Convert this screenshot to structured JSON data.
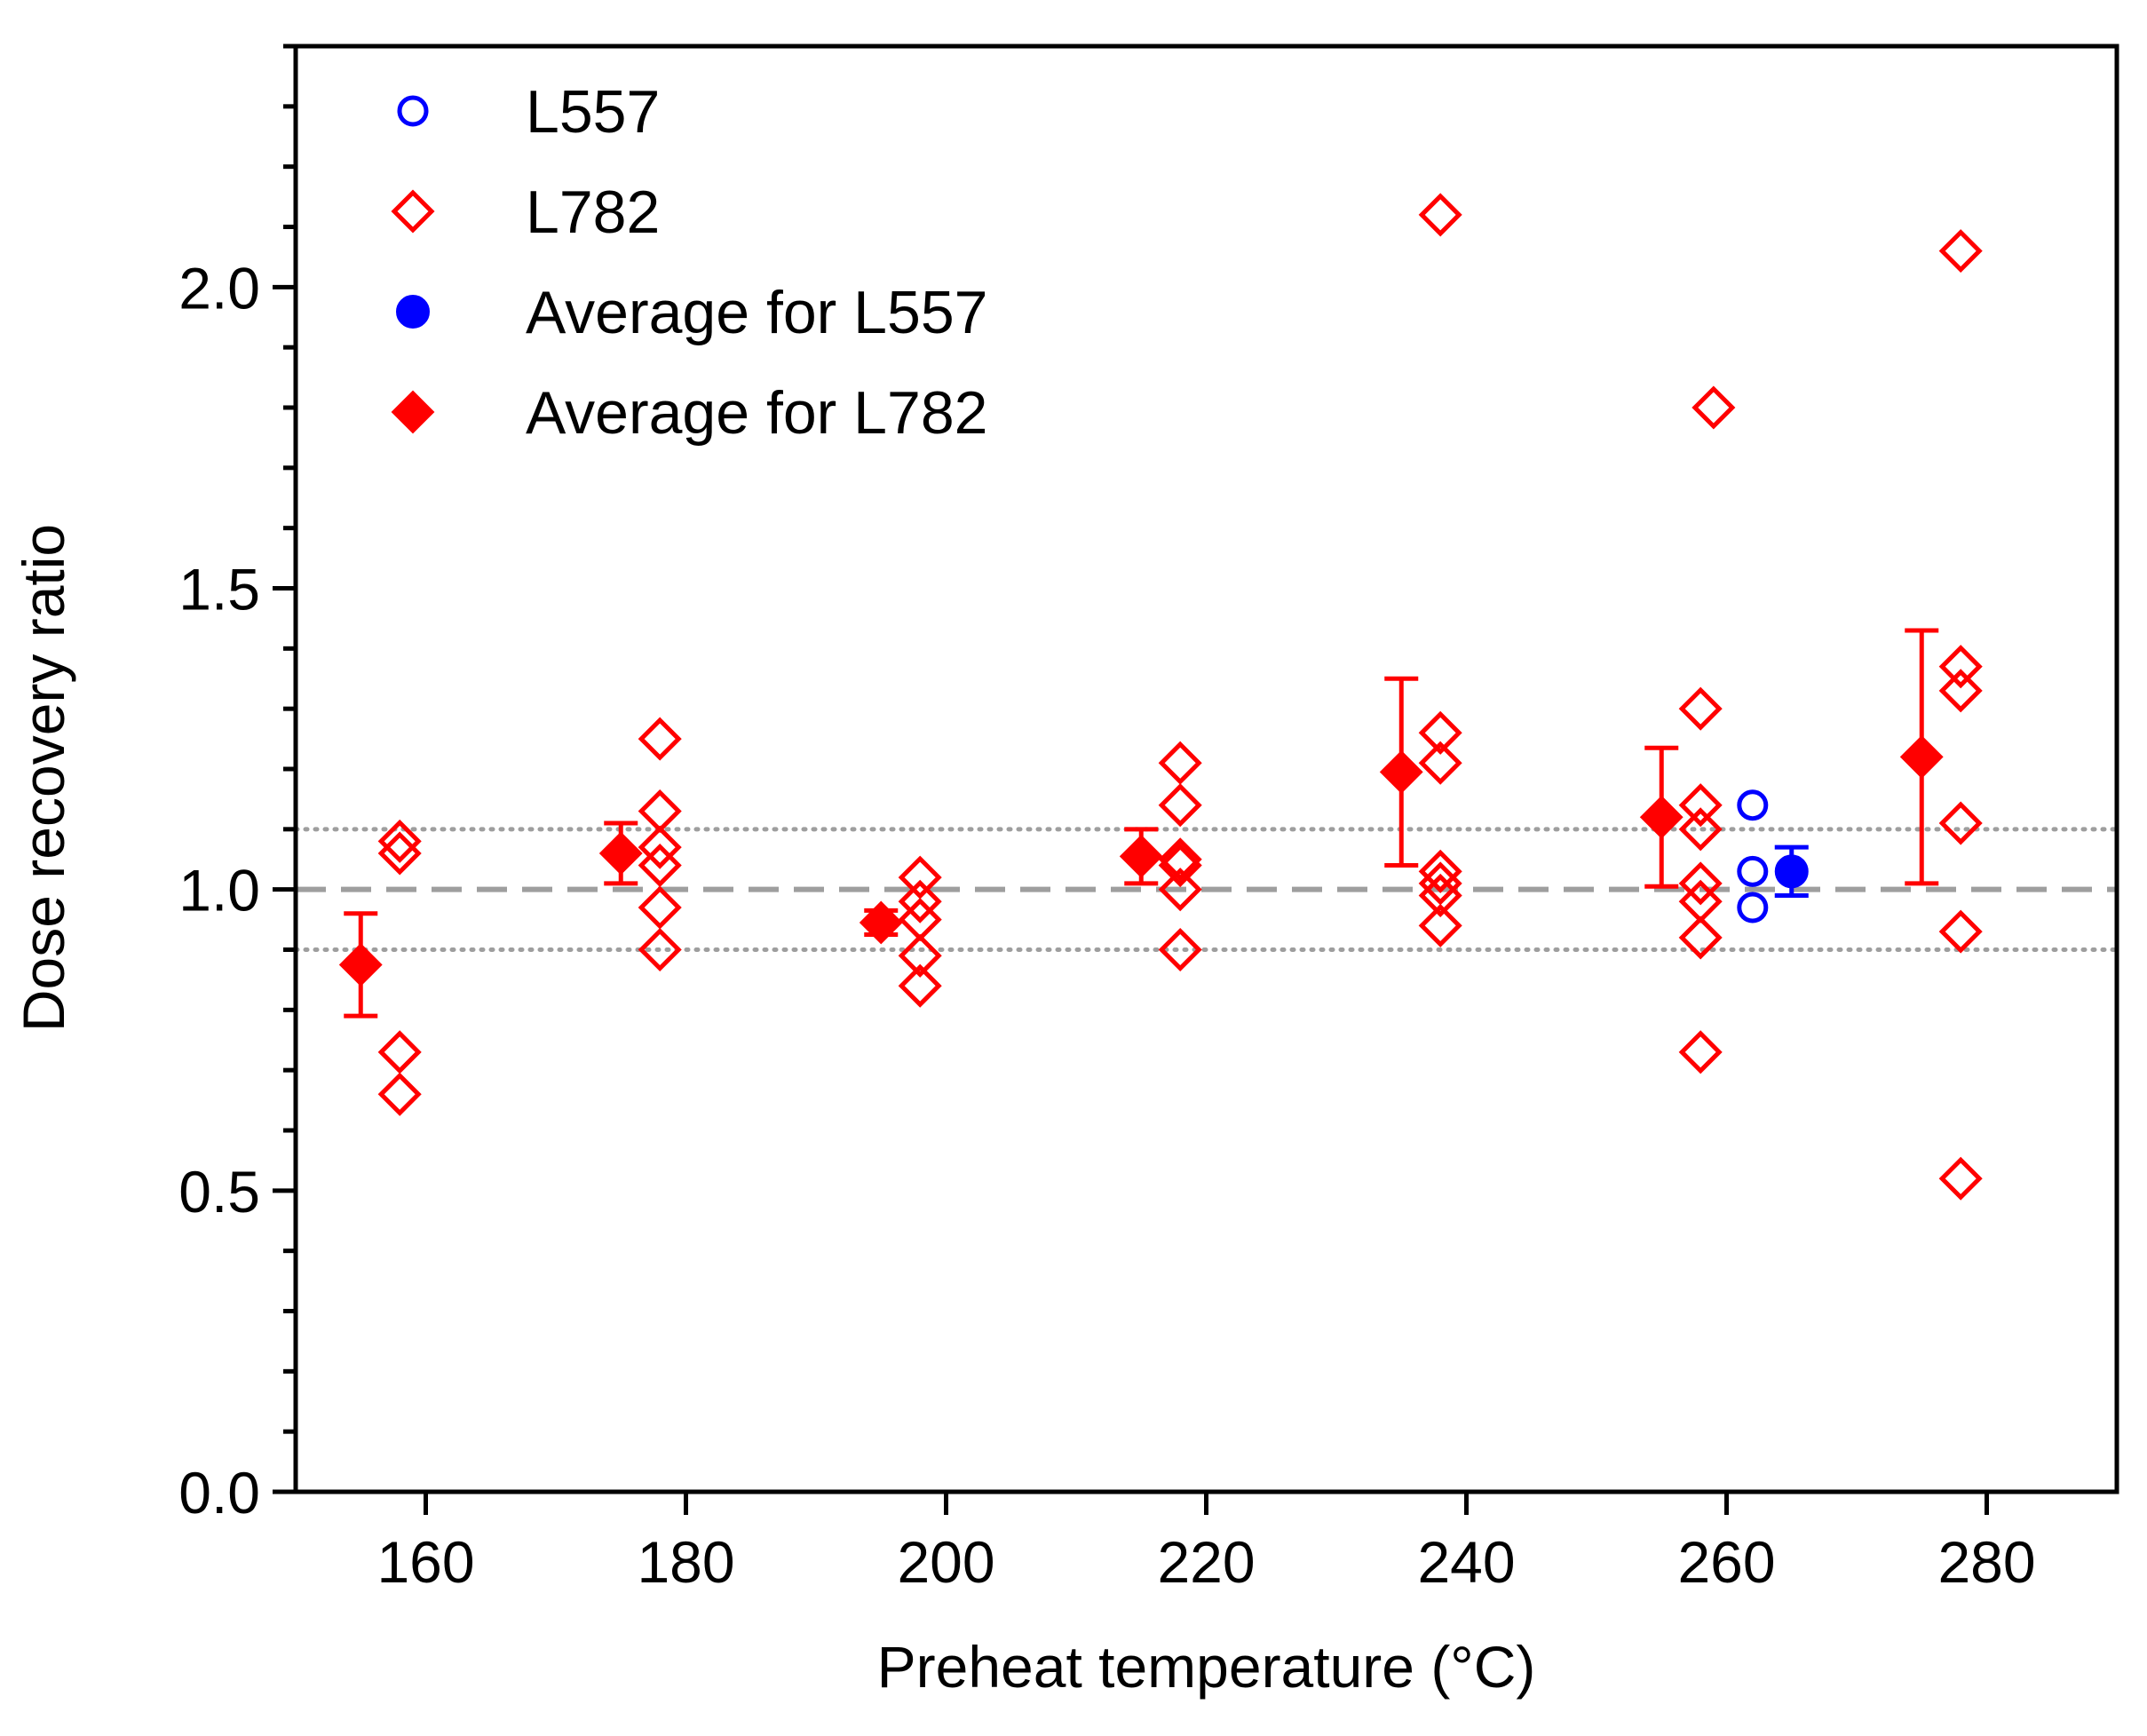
{
  "chart_data": {
    "type": "scatter",
    "title": "",
    "xlabel": "Preheat temperature (°C)",
    "ylabel": "Dose recovery ratio",
    "xlim": [
      150,
      290
    ],
    "ylim": [
      0,
      2.4
    ],
    "x_ticks": [
      160,
      180,
      200,
      220,
      240,
      260,
      280
    ],
    "x_tick_labels": [
      "160",
      "180",
      "200",
      "220",
      "240",
      "260",
      "280"
    ],
    "y_ticks": [
      0,
      0.5,
      1.0,
      1.5,
      2.0
    ],
    "y_tick_labels": [
      "0.0",
      "0.5",
      "1.0",
      "1.5",
      "2.0"
    ],
    "y_minor_step": 0.1,
    "reference_lines": [
      {
        "name": "unity",
        "y": 1.0,
        "style": "dashed",
        "color": "#9e9e9e"
      },
      {
        "name": "upper-10pct",
        "y": 1.1,
        "style": "dotted",
        "color": "#9e9e9e"
      },
      {
        "name": "lower-10pct",
        "y": 0.9,
        "style": "dotted",
        "color": "#9e9e9e"
      }
    ],
    "legend_position": "top-left",
    "series": [
      {
        "name": "L557",
        "marker": "open-circle",
        "color": "#0000ff",
        "points": [
          {
            "x": 262,
            "y": 1.14
          },
          {
            "x": 262,
            "y": 1.03
          },
          {
            "x": 262,
            "y": 0.97
          }
        ]
      },
      {
        "name": "L782",
        "marker": "open-diamond",
        "color": "#ff0000",
        "points": [
          {
            "x": 158,
            "y": 1.08
          },
          {
            "x": 158,
            "y": 1.06
          },
          {
            "x": 158,
            "y": 0.73
          },
          {
            "x": 158,
            "y": 0.66
          },
          {
            "x": 178,
            "y": 1.25
          },
          {
            "x": 178,
            "y": 1.13
          },
          {
            "x": 178,
            "y": 1.07
          },
          {
            "x": 178,
            "y": 1.04
          },
          {
            "x": 178,
            "y": 0.97
          },
          {
            "x": 178,
            "y": 0.9
          },
          {
            "x": 198,
            "y": 1.02
          },
          {
            "x": 198,
            "y": 0.98
          },
          {
            "x": 198,
            "y": 0.95
          },
          {
            "x": 198,
            "y": 0.89
          },
          {
            "x": 198,
            "y": 0.84
          },
          {
            "x": 218,
            "y": 1.21
          },
          {
            "x": 218,
            "y": 1.14
          },
          {
            "x": 218,
            "y": 1.05
          },
          {
            "x": 218,
            "y": 1.04
          },
          {
            "x": 218,
            "y": 1.0
          },
          {
            "x": 218,
            "y": 0.9
          },
          {
            "x": 238,
            "y": 2.12
          },
          {
            "x": 238,
            "y": 1.26
          },
          {
            "x": 238,
            "y": 1.21
          },
          {
            "x": 238,
            "y": 1.03
          },
          {
            "x": 238,
            "y": 1.01
          },
          {
            "x": 238,
            "y": 0.99
          },
          {
            "x": 238,
            "y": 0.94
          },
          {
            "x": 259,
            "y": 1.8
          },
          {
            "x": 258,
            "y": 1.3
          },
          {
            "x": 258,
            "y": 1.14
          },
          {
            "x": 258,
            "y": 1.1
          },
          {
            "x": 258,
            "y": 1.01
          },
          {
            "x": 258,
            "y": 0.98
          },
          {
            "x": 258,
            "y": 0.92
          },
          {
            "x": 258,
            "y": 0.73
          },
          {
            "x": 278,
            "y": 2.06
          },
          {
            "x": 278,
            "y": 1.37
          },
          {
            "x": 278,
            "y": 1.33
          },
          {
            "x": 278,
            "y": 1.11
          },
          {
            "x": 278,
            "y": 0.93
          },
          {
            "x": 278,
            "y": 0.52
          }
        ]
      },
      {
        "name": "Average for L557",
        "marker": "filled-circle",
        "color": "#0000ff",
        "points": [
          {
            "x": 265,
            "y": 1.03,
            "err_low": 0.04,
            "err_high": 0.04
          }
        ]
      },
      {
        "name": "Average for L782",
        "marker": "filled-diamond",
        "color": "#ff0000",
        "points": [
          {
            "x": 155,
            "y": 0.875,
            "err_low": 0.085,
            "err_high": 0.085
          },
          {
            "x": 175,
            "y": 1.06,
            "err_low": 0.05,
            "err_high": 0.05
          },
          {
            "x": 195,
            "y": 0.945,
            "err_low": 0.02,
            "err_high": 0.02
          },
          {
            "x": 215,
            "y": 1.055,
            "err_low": 0.045,
            "err_high": 0.045
          },
          {
            "x": 235,
            "y": 1.195,
            "err_low": 0.155,
            "err_high": 0.155
          },
          {
            "x": 255,
            "y": 1.12,
            "err_low": 0.115,
            "err_high": 0.115
          },
          {
            "x": 275,
            "y": 1.22,
            "err_low": 0.21,
            "err_high": 0.21
          }
        ]
      }
    ]
  }
}
